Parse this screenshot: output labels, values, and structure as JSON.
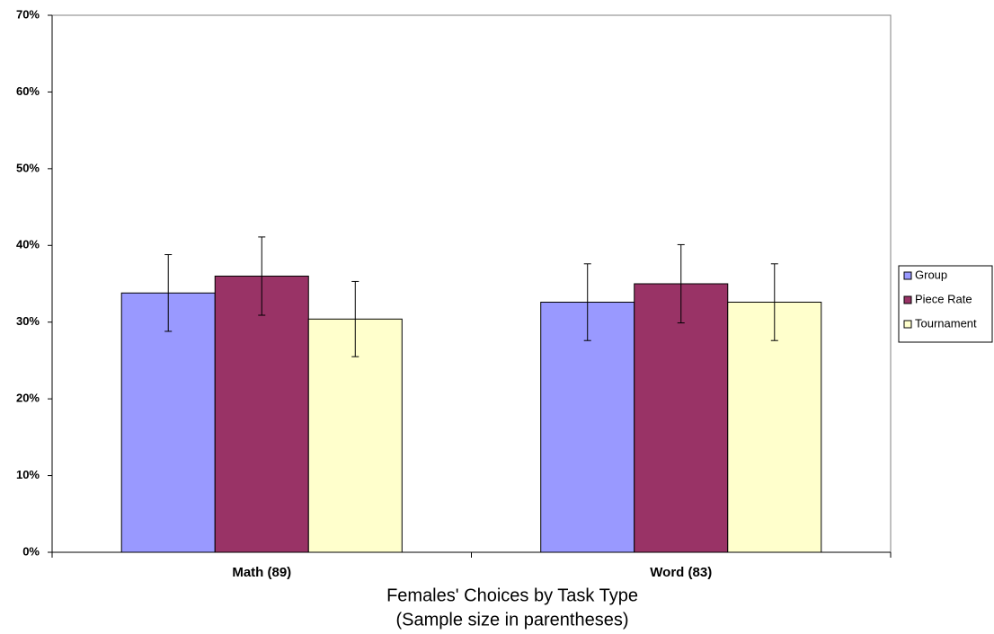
{
  "chart_data": {
    "type": "bar",
    "title": "Females' Choices by Task Type",
    "subtitle": "(Sample size in parentheses)",
    "categories": [
      "Math (89)",
      "Word (83)"
    ],
    "series": [
      {
        "name": "Group",
        "color": "#9999ff",
        "values": [
          33.8,
          32.6
        ],
        "errors": [
          5,
          5
        ]
      },
      {
        "name": "Piece Rate",
        "color": "#993366",
        "values": [
          36,
          35
        ],
        "errors": [
          5.1,
          5.1
        ]
      },
      {
        "name": "Tournament",
        "color": "#ffffcc",
        "values": [
          30.4,
          32.6
        ],
        "errors": [
          4.9,
          5
        ]
      }
    ],
    "ylim": [
      0,
      70
    ],
    "yticks": [
      {
        "value": 0,
        "label": "0%"
      },
      {
        "value": 10,
        "label": "10%"
      },
      {
        "value": 20,
        "label": "20%"
      },
      {
        "value": 30,
        "label": "30%"
      },
      {
        "value": 40,
        "label": "40%"
      },
      {
        "value": 50,
        "label": "50%"
      },
      {
        "value": 60,
        "label": "60%"
      },
      {
        "value": 70,
        "label": "70%"
      }
    ],
    "grid": false,
    "legend": "right"
  }
}
